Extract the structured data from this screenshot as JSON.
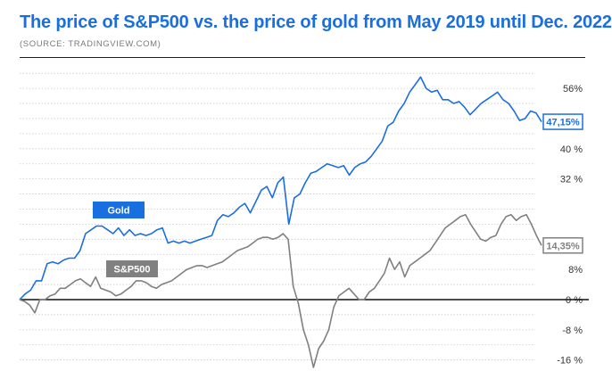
{
  "chart_data": {
    "type": "line",
    "title": "The price of S&P500 vs. the price of gold from May 2019 until Dec. 2022",
    "source": "(SOURCE: TRADINGVIEW.COM)",
    "ylim": [
      -18,
      60
    ],
    "y_ticks": [
      {
        "value": 56,
        "label": "56%"
      },
      {
        "value": 40,
        "label": "40 %"
      },
      {
        "value": 32,
        "label": "32 %"
      },
      {
        "value": 8,
        "label": "8%"
      },
      {
        "value": 0,
        "label": "0 %"
      },
      {
        "value": -8,
        "label": "-8 %"
      },
      {
        "value": -16,
        "label": "-16 %"
      }
    ],
    "grid": true,
    "zero_line": true,
    "series": [
      {
        "name": "Gold",
        "color": "#1a6fe0",
        "end_label": "47,15%",
        "values": [
          0,
          1.5,
          2.5,
          5,
          5,
          9.5,
          10,
          9.5,
          10.5,
          11,
          11,
          13,
          17.5,
          18.5,
          19.5,
          19.5,
          18.5,
          17.5,
          19,
          17,
          18.5,
          17,
          17.5,
          17,
          17.5,
          18.5,
          19,
          15,
          15.5,
          15,
          15.5,
          15,
          15.5,
          16,
          16.5,
          17,
          21,
          22.5,
          22,
          23,
          24.5,
          25.5,
          23,
          26,
          29,
          30,
          27,
          31,
          32.5,
          20,
          27,
          28,
          31,
          33.5,
          34,
          35,
          36,
          35.5,
          35,
          35.5,
          33,
          35,
          36,
          36.5,
          38,
          40,
          42,
          46,
          47,
          50,
          52,
          55,
          57,
          59,
          56,
          55,
          55.5,
          53,
          53,
          52,
          52.5,
          51,
          49,
          50.5,
          52,
          53,
          54,
          55,
          53,
          52,
          50,
          47.5,
          48,
          50,
          49.5,
          47.15
        ]
      },
      {
        "name": "S&P500",
        "color": "#808080",
        "end_label": "14,35%",
        "values": [
          0,
          -0.5,
          -1.5,
          -3.5,
          0,
          0,
          1,
          1.5,
          3,
          3,
          4,
          5,
          5.5,
          4.5,
          3.5,
          6,
          3,
          2.5,
          2,
          1,
          1.5,
          2.5,
          3.5,
          5,
          5,
          4.5,
          3.5,
          3,
          4,
          4.5,
          5,
          6,
          7,
          8,
          8.5,
          9,
          9,
          8.5,
          9,
          9.5,
          10,
          11,
          12,
          13,
          13.5,
          14,
          15,
          16,
          16.5,
          16.5,
          16,
          16.5,
          17.5,
          16,
          3.5,
          -1,
          -8,
          -12,
          -18,
          -13,
          -11,
          -8,
          -2,
          1,
          2,
          3,
          1.5,
          0,
          0,
          2,
          3,
          5,
          7,
          11,
          8,
          10,
          6,
          9,
          10,
          11,
          12,
          13,
          15,
          17,
          19,
          20,
          21,
          22,
          22.5,
          20,
          18,
          16,
          15.5,
          16.5,
          17,
          20,
          22,
          22.5,
          21,
          22,
          22.5,
          20,
          17,
          14.35
        ]
      }
    ],
    "annotations": [
      {
        "text": "Gold",
        "series": 0
      },
      {
        "text": "S&P500",
        "series": 1
      }
    ]
  }
}
